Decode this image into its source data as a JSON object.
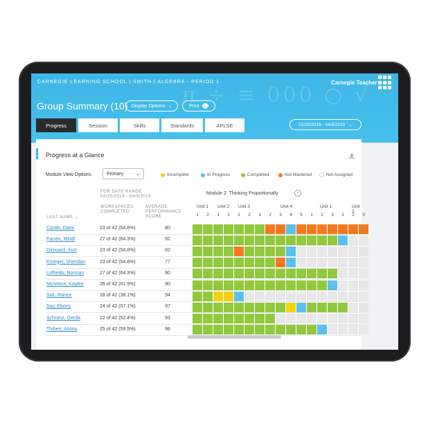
{
  "header": {
    "school": "CARNEGIE LEARNING SCHOOL | SMITH | ALGEBRA - PERIOD 1",
    "brand": "Carnegie Teacher",
    "title": "Group Summary (10)",
    "display_options": "Display Options",
    "print": "Print",
    "date_range": "02/25/2019 - 04/5/2019"
  },
  "tabs": [
    "Progress",
    "Session",
    "Skills",
    "Standards",
    "APLSE"
  ],
  "card": {
    "title": "Progress at a Glance",
    "module_view_label": "Module View Options",
    "module_view_value": "Primary",
    "legend": [
      "Incomplete",
      "In Progress",
      "Completed",
      "Not Mastered",
      "Not Assigned"
    ]
  },
  "colors": {
    "header": "#47c0ec",
    "incomplete": "#f5d20f",
    "in_progress": "#5bc0ee",
    "completed": "#92c83e",
    "not_mastered": "#f47a20",
    "not_assigned": "#e8e8e8"
  },
  "table": {
    "date_header_1": "FOR DATE RANGE",
    "date_header_2": "02/25/2019 - 04/5/2019",
    "ws_header_1": "WORKSPACES",
    "ws_header_2": "COMPLETED",
    "score_header_1": "AVERAGE",
    "score_header_2": "PERFORMANCE",
    "score_header_3": "SCORE",
    "name_header": "LAST NAME",
    "module_label": "Module 2: Thinking Proportionally",
    "units": [
      "Unit 1",
      "Unit 2",
      "Unit 3",
      "Unit 4",
      "Unit 1",
      "Unit 2"
    ],
    "workspace_numbers": [
      "1",
      "2",
      "1",
      "2",
      "1",
      "2",
      "1",
      "2",
      "3",
      "4",
      "5",
      "1",
      "2",
      "3",
      "1",
      "2",
      "3"
    ],
    "rows": [
      {
        "name": "Castle, Dario",
        "ws": "23 of 42 (54.8%)",
        "score": "80",
        "cells": "CCCCCCCNNINNNNNNN"
      },
      {
        "name": "Farren, Mindi",
        "ws": "27 of 42 (64.3%)",
        "score": "92",
        "cells": "CCCCCCCCCCCCCCIAA"
      },
      {
        "name": "Girouard, Kurt",
        "ws": "23 of 42 (54.8%)",
        "score": "82",
        "cells": "CCCCNCCCCIAAAAAAA"
      },
      {
        "name": "Kroeger, Sheridan",
        "ws": "23 of 42 (54.8%)",
        "score": "77",
        "cells": "CCCCCCCCNIAAAAAAA"
      },
      {
        "name": "Loffredo, Norman",
        "ws": "27 of 42 (64.3%)",
        "score": "90",
        "cells": "CCCCCCCCCCCCCCAAA"
      },
      {
        "name": "Mcneece, Kaylee",
        "ws": "26 of 42 (61.9%)",
        "score": "90",
        "cells": "CCCCCCCCCCCCCIAAA"
      },
      {
        "name": "Sak, Ranee",
        "ws": "16 of 42 (38.1%)",
        "score": "94",
        "cells": "CCYYIAAAAAAAAAAAA"
      },
      {
        "name": "Say, Ebony",
        "ws": "24 of 42 (57.1%)",
        "score": "97",
        "cells": "CCCCCCCCCYICCCCAA"
      },
      {
        "name": "Schranz, Gerda",
        "ws": "22 of 42 (52.4%)",
        "score": "93",
        "cells": "CCCCCCCCAAAAAAAAA"
      },
      {
        "name": "Thibert, Alvina",
        "ws": "25 of 42 (59.5%)",
        "score": "98",
        "cells": "CCCCCCCCCCCCIAAAA"
      }
    ]
  }
}
